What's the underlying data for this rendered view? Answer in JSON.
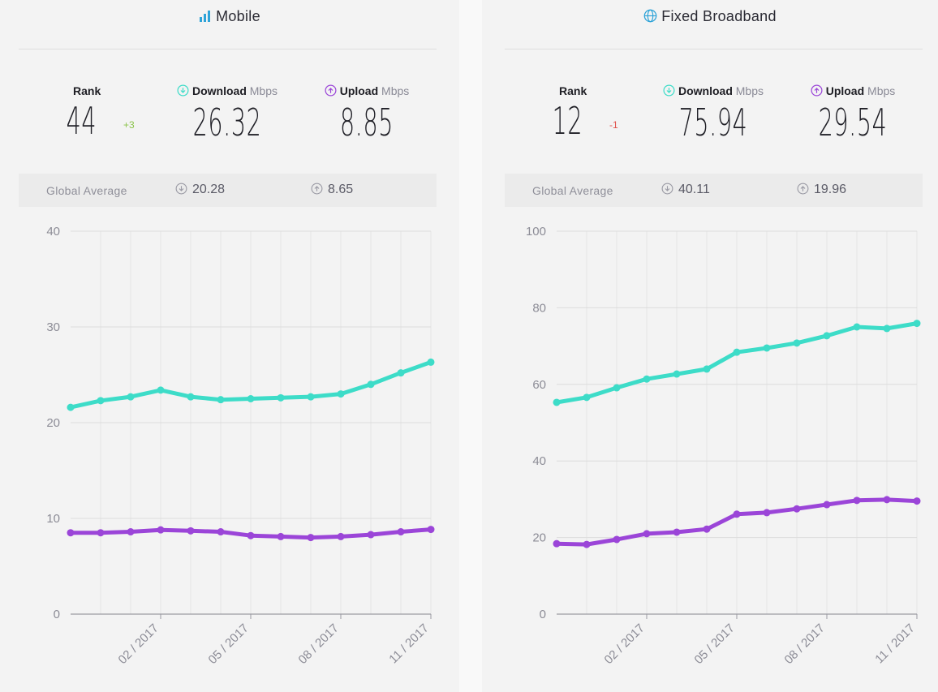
{
  "colors": {
    "download": "#3ddcc8",
    "upload": "#9b45d8",
    "title_icon": "#2ea3d8",
    "rank_up": "#8bc34a",
    "rank_down": "#e0504a"
  },
  "panels": [
    {
      "id": "mobile",
      "title": "Mobile",
      "title_icon": "signal-bars-icon",
      "rank_label": "Rank",
      "rank": "44",
      "rank_change": "+3",
      "rank_direction": "up",
      "download_label": "Download",
      "download_unit": "Mbps",
      "download_value": "26.32",
      "upload_label": "Upload",
      "upload_unit": "Mbps",
      "upload_value": "8.85",
      "global_average_label": "Global Average",
      "global_download": "20.28",
      "global_upload": "8.65"
    },
    {
      "id": "fixed",
      "title": "Fixed Broadband",
      "title_icon": "globe-icon",
      "rank_label": "Rank",
      "rank": "12",
      "rank_change": "-1",
      "rank_direction": "down",
      "download_label": "Download",
      "download_unit": "Mbps",
      "download_value": "75.94",
      "upload_label": "Upload",
      "upload_unit": "Mbps",
      "upload_value": "29.54",
      "global_average_label": "Global Average",
      "global_download": "40.11",
      "global_upload": "19.96"
    }
  ],
  "chart_data": [
    {
      "type": "line",
      "title": "Mobile",
      "x": [
        "11/2016",
        "12/2016",
        "01/2017",
        "02/2017",
        "03/2017",
        "04/2017",
        "05/2017",
        "06/2017",
        "07/2017",
        "08/2017",
        "09/2017",
        "10/2017",
        "11/2017"
      ],
      "xtick_labels": [
        "02 / 2017",
        "05 / 2017",
        "08 / 2017",
        "11 / 2017"
      ],
      "xtick_indices": [
        3,
        6,
        9,
        12
      ],
      "yticks": [
        0,
        10,
        20,
        30,
        40
      ],
      "ylim": [
        0,
        40
      ],
      "grid": true,
      "series": [
        {
          "name": "Download",
          "values": [
            21.6,
            22.3,
            22.7,
            23.4,
            22.7,
            22.4,
            22.5,
            22.6,
            22.7,
            23.0,
            24.0,
            25.2,
            26.32
          ]
        },
        {
          "name": "Upload",
          "values": [
            8.5,
            8.5,
            8.6,
            8.8,
            8.7,
            8.6,
            8.2,
            8.1,
            8.0,
            8.1,
            8.3,
            8.6,
            8.85
          ]
        }
      ]
    },
    {
      "type": "line",
      "title": "Fixed Broadband",
      "x": [
        "11/2016",
        "12/2016",
        "01/2017",
        "02/2017",
        "03/2017",
        "04/2017",
        "05/2017",
        "06/2017",
        "07/2017",
        "08/2017",
        "09/2017",
        "10/2017",
        "11/2017"
      ],
      "xtick_labels": [
        "02 / 2017",
        "05 / 2017",
        "08 / 2017",
        "11 / 2017"
      ],
      "xtick_indices": [
        3,
        6,
        9,
        12
      ],
      "yticks": [
        0,
        20,
        40,
        60,
        80,
        100
      ],
      "ylim": [
        0,
        100
      ],
      "grid": true,
      "series": [
        {
          "name": "Download",
          "values": [
            55.3,
            56.6,
            59.1,
            61.4,
            62.7,
            64.0,
            68.4,
            69.5,
            70.8,
            72.7,
            75.0,
            74.6,
            75.94
          ]
        },
        {
          "name": "Upload",
          "values": [
            18.4,
            18.2,
            19.5,
            21.0,
            21.4,
            22.2,
            26.1,
            26.5,
            27.5,
            28.6,
            29.7,
            29.9,
            29.54
          ]
        }
      ]
    }
  ]
}
